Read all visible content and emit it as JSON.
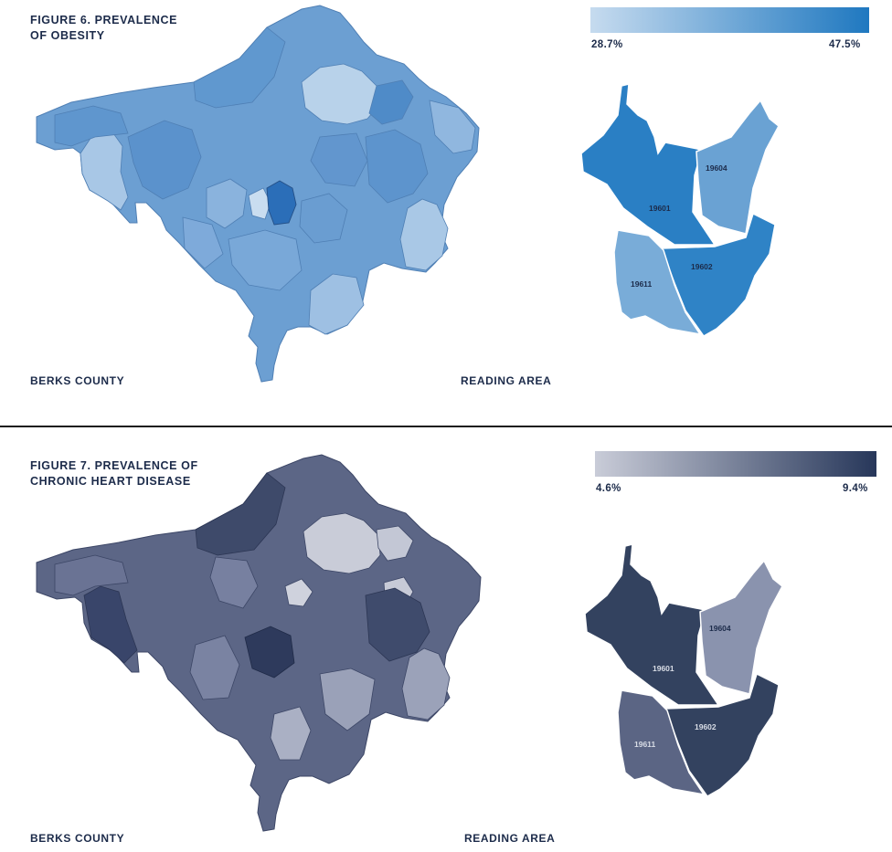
{
  "figures": [
    {
      "title_line1": "FIGURE 6. PREVALENCE",
      "title_line2": "OF OBESITY",
      "legend": {
        "min": "28.7%",
        "max": "47.5%",
        "color_low": "#c6dbef",
        "color_high": "#1f78c0"
      },
      "county_label": "BERKS COUNTY",
      "reading_label": "READING AREA",
      "zip_colors": {
        "19601": "#2a7fc4",
        "19602": "#2f83c6",
        "19604": "#6aa2d3",
        "19611": "#79acd8"
      },
      "zip_labels": [
        "19601",
        "19602",
        "19604",
        "19611"
      ]
    },
    {
      "title_line1": "FIGURE 7. PREVALENCE OF",
      "title_line2": "CHRONIC HEART DISEASE",
      "legend": {
        "min": "4.6%",
        "max": "9.4%",
        "color_low": "#c9ccd8",
        "color_high": "#27375a"
      },
      "county_label": "BERKS COUNTY",
      "reading_label": "READING AREA",
      "zip_colors": {
        "19601": "#33425f",
        "19602": "#33425f",
        "19604": "#8a93ae",
        "19611": "#5b6584"
      },
      "zip_labels": [
        "19601",
        "19602",
        "19604",
        "19611"
      ]
    }
  ]
}
